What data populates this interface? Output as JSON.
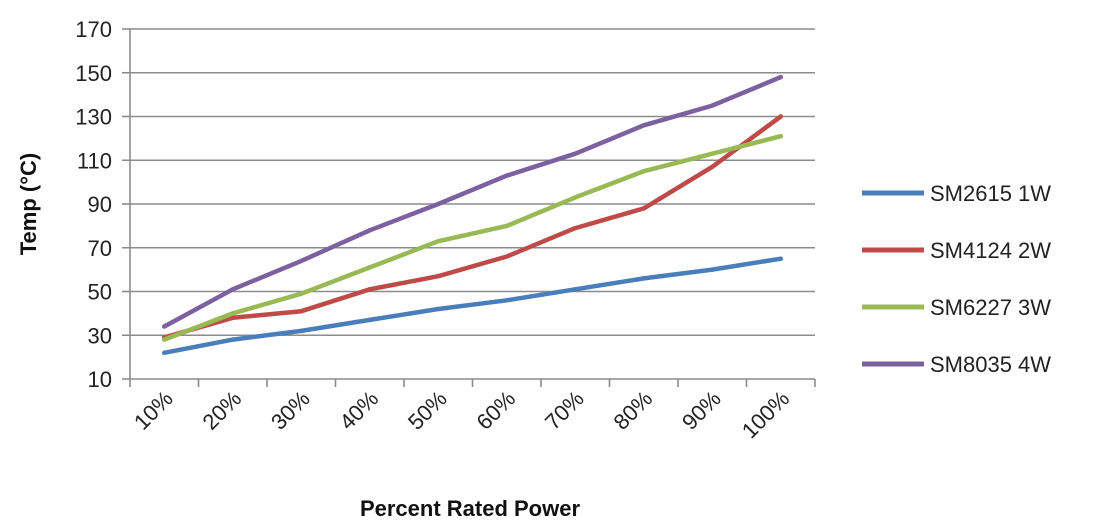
{
  "chart_data": {
    "type": "line",
    "title": "",
    "xlabel": "Percent Rated Power",
    "ylabel": "Temp (°C)",
    "categories": [
      "10%",
      "20%",
      "30%",
      "40%",
      "50%",
      "60%",
      "70%",
      "80%",
      "90%",
      "100%"
    ],
    "ylim": [
      10,
      170
    ],
    "yticks": [
      10,
      30,
      50,
      70,
      90,
      110,
      130,
      150,
      170
    ],
    "yticks_labels": [
      "10",
      "30",
      "50",
      "70",
      "90",
      "110",
      "130",
      "150",
      "170"
    ],
    "grid": true,
    "legend_position": "right",
    "series": [
      {
        "name": "SM2615 1W",
        "color": "#4A7EBB",
        "values": [
          22,
          28,
          32,
          37,
          42,
          46,
          51,
          56,
          60,
          65
        ]
      },
      {
        "name": "SM4124 2W",
        "color": "#BE4B48",
        "values": [
          29,
          38,
          41,
          51,
          57,
          66,
          79,
          88,
          107,
          130
        ]
      },
      {
        "name": "SM6227 3W",
        "color": "#98B954",
        "values": [
          28,
          40,
          49,
          61,
          73,
          80,
          93,
          105,
          113,
          121
        ]
      },
      {
        "name": "SM8035 4W",
        "color": "#7D60A0",
        "values": [
          34,
          51,
          64,
          78,
          90,
          103,
          113,
          126,
          135,
          148
        ]
      }
    ]
  }
}
